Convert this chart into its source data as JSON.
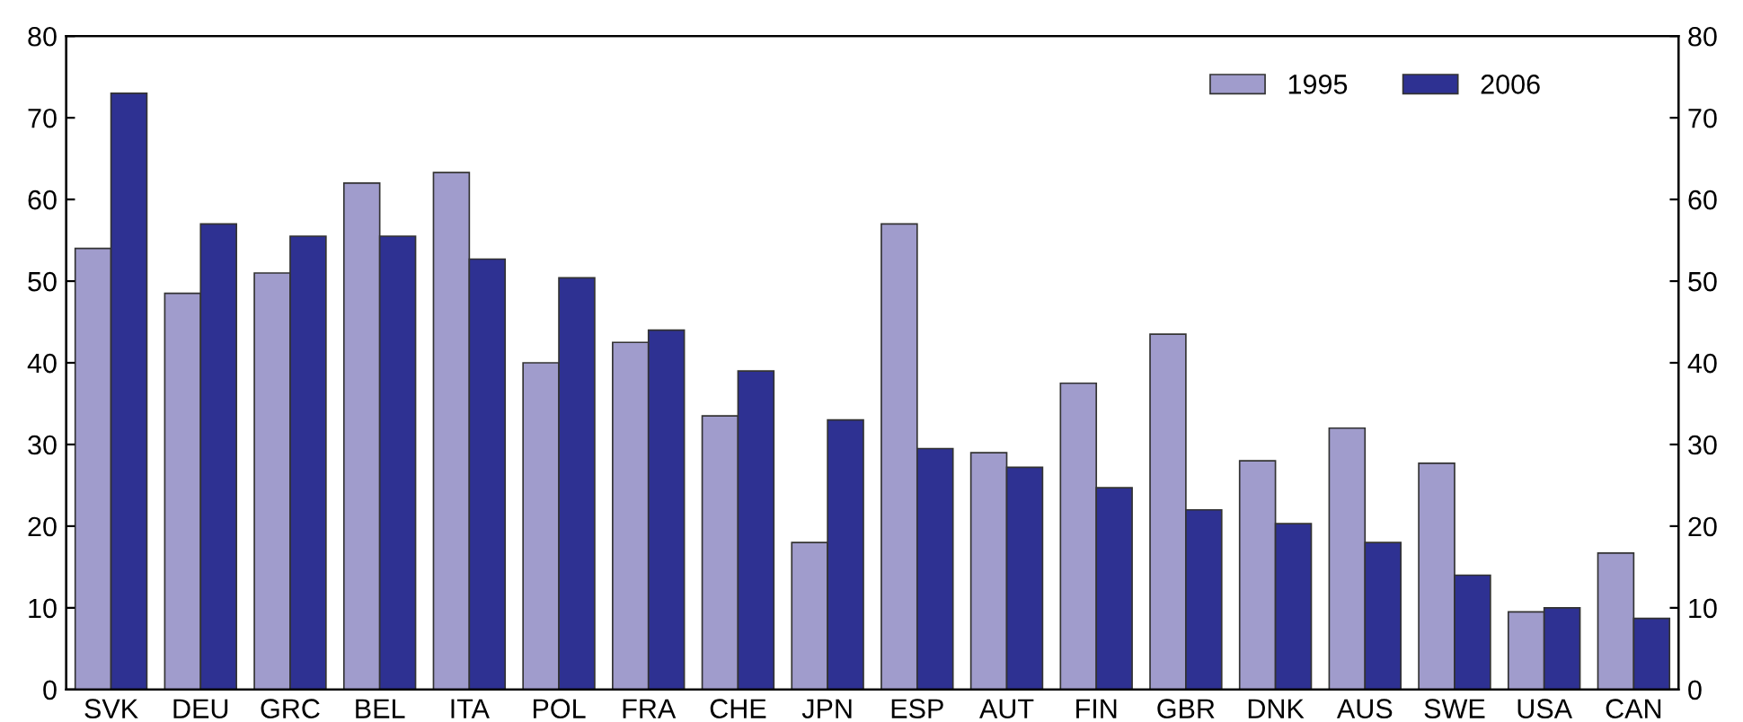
{
  "chart_data": {
    "type": "bar",
    "categories": [
      "SVK",
      "DEU",
      "GRC",
      "BEL",
      "ITA",
      "POL",
      "FRA",
      "CHE",
      "JPN",
      "ESP",
      "AUT",
      "FIN",
      "GBR",
      "DNK",
      "AUS",
      "SWE",
      "USA",
      "CAN"
    ],
    "series": [
      {
        "name": "1995",
        "color": "#a09ccc",
        "values": [
          54,
          48.5,
          51,
          62,
          63.3,
          40,
          42.5,
          33.5,
          18,
          57,
          29,
          37.5,
          43.5,
          28,
          32,
          27.7,
          9.5,
          16.7
        ]
      },
      {
        "name": "2006",
        "color": "#2e3192",
        "values": [
          73,
          57,
          55.5,
          55.5,
          52.7,
          50.4,
          44,
          39,
          33,
          29.5,
          27.2,
          24.7,
          22,
          20.3,
          18,
          14,
          10,
          8.7
        ]
      }
    ],
    "ylim": [
      0,
      80
    ],
    "yticks": [
      0,
      10,
      20,
      30,
      40,
      50,
      60,
      70,
      80
    ],
    "y2lim": [
      0,
      80
    ],
    "y2ticks": [
      0,
      10,
      20,
      30,
      40,
      50,
      60,
      70,
      80
    ],
    "grid": false,
    "legend": "top right"
  }
}
